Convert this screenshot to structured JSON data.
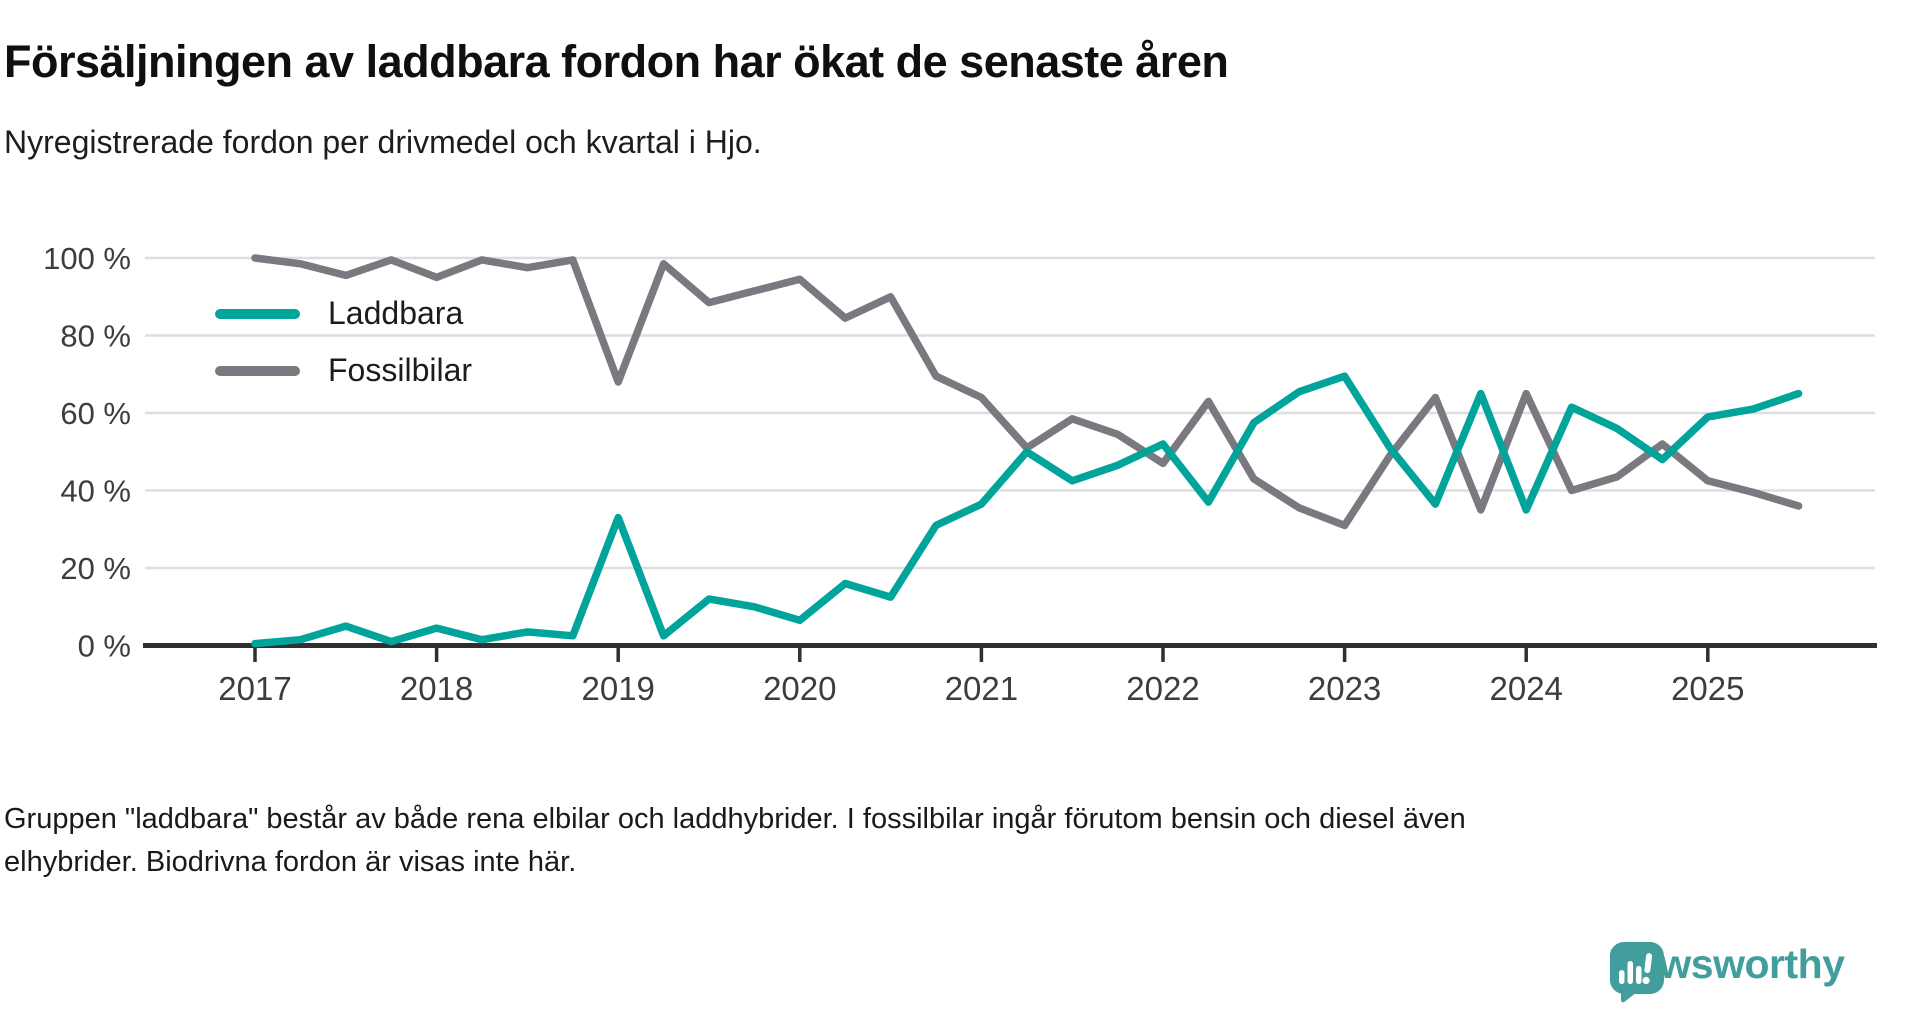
{
  "page": {
    "title": "Försäljningen av laddbara fordon har ökat de senaste åren",
    "subtitle": "Nyregistrerade fordon per drivmedel och kvartal i Hjo.",
    "footnote_line1": "Gruppen \"laddbara\" består av både rena elbilar och laddhybrider. I fossilbilar ingår förutom bensin och diesel även",
    "footnote_line2": "elhybrider. Biodrivna fordon är visas inte här.",
    "brand_name": "Newsworthy"
  },
  "colors": {
    "laddbara": "#00a49a",
    "fossilbilar": "#7b7880",
    "grid": "#dedede",
    "axis": "#2f2f2f",
    "tick_text": "#3d3d3d",
    "brand_teal": "#429e9c"
  },
  "legend": {
    "items": [
      {
        "label": "Laddbara",
        "color": "#00a49a"
      },
      {
        "label": "Fossilbilar",
        "color": "#7b7880"
      }
    ]
  },
  "chart_data": {
    "type": "line",
    "title": "Försäljningen av laddbara fordon har ökat de senaste åren",
    "subtitle": "Nyregistrerade fordon per drivmedel och kvartal i Hjo.",
    "grid": "horizontal",
    "legend_position": "inside-top-left",
    "ylim": [
      0,
      100
    ],
    "y_tick_values": [
      0,
      20,
      40,
      60,
      80,
      100
    ],
    "y_tick_labels": [
      "0 %",
      "20 %",
      "40 %",
      "60 %",
      "80 %",
      "100 %"
    ],
    "x_tick_labels": [
      "2017",
      "2018",
      "2019",
      "2020",
      "2021",
      "2022",
      "2023",
      "2024",
      "2025"
    ],
    "x": [
      "2017 Q1",
      "2017 Q2",
      "2017 Q3",
      "2017 Q4",
      "2018 Q1",
      "2018 Q2",
      "2018 Q3",
      "2018 Q4",
      "2019 Q1",
      "2019 Q2",
      "2019 Q3",
      "2019 Q4",
      "2020 Q1",
      "2020 Q2",
      "2020 Q3",
      "2020 Q4",
      "2021 Q1",
      "2021 Q2",
      "2021 Q3",
      "2021 Q4",
      "2022 Q1",
      "2022 Q2",
      "2022 Q3",
      "2022 Q4",
      "2023 Q1",
      "2023 Q2",
      "2023 Q3",
      "2023 Q4",
      "2024 Q1",
      "2024 Q2",
      "2024 Q3",
      "2024 Q4",
      "2025 Q1",
      "2025 Q2",
      "2025 Q3"
    ],
    "unit": "%",
    "series": [
      {
        "name": "Laddbara",
        "color": "#00a49a",
        "values": [
          0.5,
          1.5,
          5,
          1,
          4.5,
          1.5,
          3.5,
          2.5,
          33,
          2.5,
          12,
          10,
          6.5,
          16,
          12.5,
          31,
          36.5,
          50,
          42.5,
          46.5,
          52,
          37,
          57.5,
          65.5,
          69.5,
          51,
          36.5,
          65,
          35,
          61.5,
          56,
          48,
          59,
          61,
          65
        ]
      },
      {
        "name": "Fossilbilar",
        "color": "#7b7880",
        "values": [
          100,
          98.5,
          95.5,
          99.5,
          95,
          99.5,
          97.5,
          99.5,
          68,
          98.5,
          88.5,
          91.5,
          94.5,
          84.5,
          90,
          69.5,
          64,
          51,
          58.5,
          54.5,
          47,
          63,
          43,
          35.5,
          31,
          49,
          64,
          35,
          65,
          40,
          43.5,
          52,
          42.5,
          39.5,
          36
        ]
      }
    ]
  }
}
